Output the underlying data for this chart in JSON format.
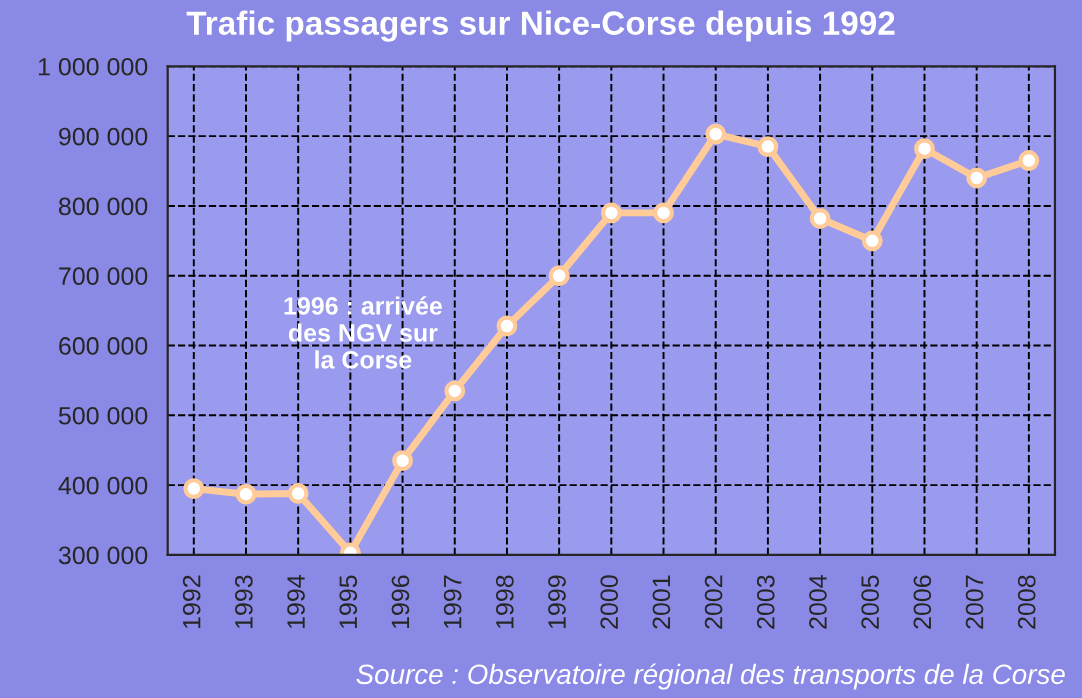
{
  "chart_data": {
    "type": "line",
    "title": "Trafic passagers sur Nice-Corse depuis 1992",
    "categories": [
      "1992",
      "1993",
      "1994",
      "1995",
      "1996",
      "1997",
      "1998",
      "1999",
      "2000",
      "2001",
      "2002",
      "2003",
      "2004",
      "2005",
      "2006",
      "2007",
      "2008"
    ],
    "series": [
      {
        "color": "#ffcc99",
        "values": [
          395000,
          387000,
          388000,
          303000,
          435000,
          535000,
          628000,
          700000,
          790000,
          790000,
          903000,
          885000,
          782000,
          750000,
          882000,
          840000,
          865000
        ]
      }
    ],
    "ylim": [
      300000,
      1000000
    ],
    "yticks": [
      {
        "value": 300000,
        "label": "300 000"
      },
      {
        "value": 400000,
        "label": "400 000"
      },
      {
        "value": 500000,
        "label": "500 000"
      },
      {
        "value": 600000,
        "label": "600 000"
      },
      {
        "value": 700000,
        "label": "700 000"
      },
      {
        "value": 800000,
        "label": "800 000"
      },
      {
        "value": 900000,
        "label": "900 000"
      },
      {
        "value": 1000000,
        "label": "1 000 000"
      }
    ],
    "grid": true,
    "marker": "circle",
    "line_style": "solid",
    "legend": false,
    "annotations": [
      "1996 : arrivée\ndes NGV sur\nla Corse",
      "Source : Observatoire régional des transports de la Corse"
    ]
  }
}
